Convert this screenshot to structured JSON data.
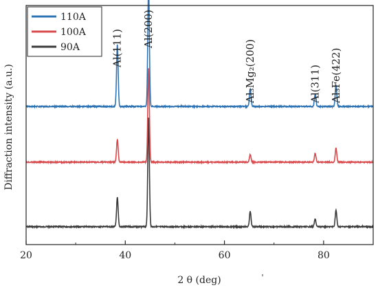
{
  "chart_data": {
    "type": "line",
    "xlabel": "2 θ (deg)",
    "ylabel": "Diffraction intensity (a.u.)",
    "xlim": [
      20,
      90
    ],
    "x_ticks": [
      20,
      40,
      60,
      80
    ],
    "grid": false,
    "legend_position": "top-left",
    "series": [
      {
        "name": "110A",
        "color": "#2e74b5",
        "baseline": 1.0,
        "peaks": [
          {
            "x": 38.4,
            "height": 0.98
          },
          {
            "x": 44.7,
            "height": 1.9
          },
          {
            "x": 65.2,
            "height": 0.28
          },
          {
            "x": 78.3,
            "height": 0.2
          },
          {
            "x": 82.5,
            "height": 0.34
          }
        ]
      },
      {
        "name": "100A",
        "color": "#d9484b",
        "baseline": 0.5,
        "peaks": [
          {
            "x": 38.4,
            "height": 0.36
          },
          {
            "x": 44.7,
            "height": 1.48
          },
          {
            "x": 65.2,
            "height": 0.12
          },
          {
            "x": 78.3,
            "height": 0.14
          },
          {
            "x": 82.5,
            "height": 0.22
          }
        ]
      },
      {
        "name": "90A",
        "color": "#3a3a3a",
        "baseline": 0.0,
        "peaks": [
          {
            "x": 38.4,
            "height": 0.46
          },
          {
            "x": 44.7,
            "height": 1.72
          },
          {
            "x": 65.2,
            "height": 0.24
          },
          {
            "x": 78.3,
            "height": 0.12
          },
          {
            "x": 82.5,
            "height": 0.26
          }
        ]
      }
    ],
    "annotations": [
      {
        "text": "Al(111)",
        "x": 38.4
      },
      {
        "text": "Al(200)",
        "x": 44.7
      },
      {
        "text": "Al₃Mg₂(200)",
        "x": 65.2
      },
      {
        "text": "Al(311)",
        "x": 78.3
      },
      {
        "text": "Al₃Fe(422)",
        "x": 82.5
      }
    ]
  },
  "stray_mark": "'"
}
